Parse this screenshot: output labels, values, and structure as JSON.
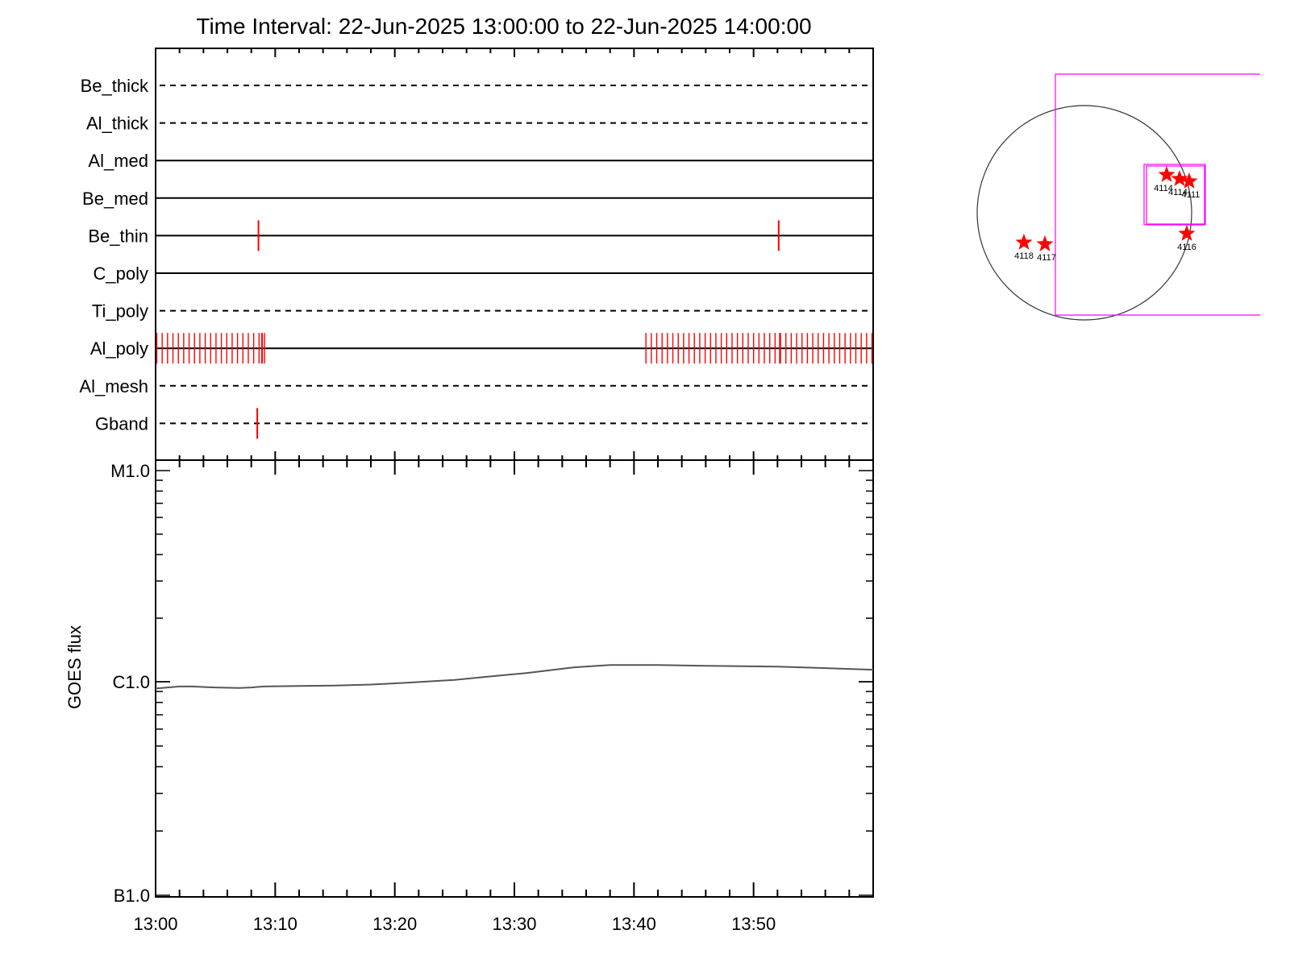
{
  "chart_data": [
    {
      "type": "timeline",
      "title": "Time Interval: 22-Jun-2025 13:00:00 to 22-Jun-2025 14:00:00",
      "x_range": [
        "13:00",
        "14:00"
      ],
      "xticks": [
        "13:00",
        "13:10",
        "13:20",
        "13:30",
        "13:40",
        "13:50"
      ],
      "grid": false,
      "rows": [
        {
          "label": "Be_thick",
          "line": "dashed",
          "events": []
        },
        {
          "label": "Al_thick",
          "line": "dashed",
          "events": []
        },
        {
          "label": "Al_med",
          "line": "solid",
          "events": []
        },
        {
          "label": "Be_med",
          "line": "solid",
          "events": []
        },
        {
          "label": "Be_thin",
          "line": "solid",
          "events": [
            8.6,
            52.1
          ]
        },
        {
          "label": "C_poly",
          "line": "solid",
          "events": []
        },
        {
          "label": "Ti_poly",
          "line": "dashed",
          "events": []
        },
        {
          "label": "Al_poly",
          "line": "solid",
          "event_ranges": [
            [
              0.1,
              9.3,
              0.45
            ],
            [
              41.0,
              59.9,
              0.45
            ]
          ],
          "events": [
            8.9,
            52.2
          ]
        },
        {
          "label": "Al_mesh",
          "line": "dashed",
          "events": []
        },
        {
          "label": "Gband",
          "line": "dashed",
          "events": [
            8.5
          ]
        }
      ],
      "event_color": "#ff0000"
    },
    {
      "type": "line",
      "ylabel": "GOES flux",
      "yscale": "log",
      "ylim": [
        "B1.0",
        "M1.0"
      ],
      "yticks": [
        "M1.0",
        "C1.0",
        "B1.0"
      ],
      "x": [
        0,
        1,
        2,
        3,
        4,
        5,
        7,
        8,
        9,
        12,
        15,
        18,
        21,
        25,
        28,
        31,
        35,
        38,
        42,
        46,
        52,
        56,
        60
      ],
      "y": [
        0.93,
        0.94,
        0.95,
        0.95,
        0.945,
        0.94,
        0.935,
        0.94,
        0.95,
        0.955,
        0.96,
        0.97,
        0.99,
        1.02,
        1.06,
        1.1,
        1.17,
        1.2,
        1.2,
        1.19,
        1.18,
        1.16,
        1.14
      ],
      "series": [
        {
          "values_unit": "C-class (1e-6 W/m^2)"
        }
      ],
      "line_color": "#555555"
    },
    {
      "type": "scatter",
      "description_kind": "solar disk map",
      "points": [
        {
          "label": "4114",
          "x": -235,
          "y": 435
        },
        {
          "label": "4114",
          "x": -205,
          "y": 410
        },
        {
          "label": "4111",
          "x": -190,
          "y": 400
        },
        {
          "label": "4116",
          "x": -185,
          "y": 260
        },
        {
          "label": "4118",
          "x": -735,
          "y": 230
        },
        {
          "label": "4117",
          "x": -700,
          "y": 225
        }
      ],
      "disk_color": "#333333",
      "box_color": "#ff00ff",
      "marker_color": "#ff0000"
    }
  ]
}
